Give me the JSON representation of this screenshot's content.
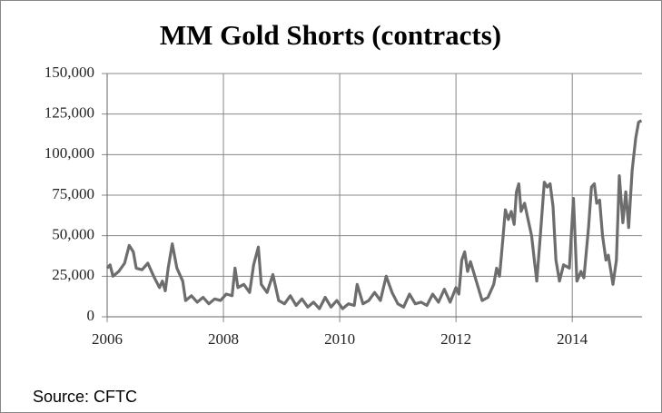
{
  "chart_data": {
    "type": "line",
    "title": "MM Gold Shorts (contracts)",
    "source": "Source: CFTC",
    "xlim": [
      2006,
      2015.2
    ],
    "xticks": [
      2006,
      2008,
      2010,
      2012,
      2014
    ],
    "ylim": [
      0,
      150000
    ],
    "yticks": [
      0,
      {
        "value": 25000,
        "label": "25,000"
      },
      {
        "value": 50000,
        "label": "50,000"
      },
      {
        "value": 75000,
        "label": "75,000"
      },
      {
        "value": 100000,
        "label": "100,000"
      },
      {
        "value": 125000,
        "label": "125,000"
      },
      {
        "value": 150000,
        "label": "150,000"
      }
    ],
    "grid": true,
    "series": [
      {
        "name": "MM Gold Shorts",
        "color": "#6d6d6d",
        "x": [
          2006.0,
          2006.05,
          2006.1,
          2006.2,
          2006.3,
          2006.38,
          2006.45,
          2006.5,
          2006.6,
          2006.7,
          2006.8,
          2006.9,
          2006.95,
          2007.0,
          2007.05,
          2007.12,
          2007.2,
          2007.3,
          2007.35,
          2007.45,
          2007.55,
          2007.65,
          2007.75,
          2007.85,
          2007.95,
          2008.05,
          2008.15,
          2008.2,
          2008.25,
          2008.35,
          2008.45,
          2008.52,
          2008.6,
          2008.65,
          2008.75,
          2008.85,
          2008.95,
          2009.05,
          2009.15,
          2009.25,
          2009.35,
          2009.45,
          2009.55,
          2009.65,
          2009.75,
          2009.85,
          2009.95,
          2010.05,
          2010.15,
          2010.25,
          2010.3,
          2010.4,
          2010.5,
          2010.6,
          2010.7,
          2010.8,
          2010.9,
          2011.0,
          2011.1,
          2011.2,
          2011.3,
          2011.4,
          2011.5,
          2011.6,
          2011.7,
          2011.8,
          2011.9,
          2012.0,
          2012.05,
          2012.1,
          2012.15,
          2012.2,
          2012.25,
          2012.35,
          2012.45,
          2012.55,
          2012.65,
          2012.7,
          2012.75,
          2012.8,
          2012.85,
          2012.9,
          2012.95,
          2013.0,
          2013.04,
          2013.08,
          2013.12,
          2013.18,
          2013.24,
          2013.3,
          2013.35,
          2013.39,
          2013.45,
          2013.52,
          2013.57,
          2013.62,
          2013.67,
          2013.72,
          2013.78,
          2013.85,
          2013.95,
          2014.02,
          2014.08,
          2014.15,
          2014.2,
          2014.28,
          2014.33,
          2014.38,
          2014.42,
          2014.47,
          2014.52,
          2014.58,
          2014.62,
          2014.7,
          2014.76,
          2014.81,
          2014.87,
          2014.92,
          2014.97,
          2015.03,
          2015.09,
          2015.14,
          2015.19
        ],
        "values": [
          30000,
          32000,
          25000,
          28000,
          33000,
          44000,
          40000,
          30000,
          29000,
          33000,
          25000,
          18000,
          22000,
          16000,
          30000,
          45000,
          30000,
          22000,
          10000,
          13000,
          9000,
          12000,
          8000,
          11000,
          10000,
          14000,
          13000,
          30000,
          18000,
          20000,
          15000,
          32000,
          43000,
          20000,
          15000,
          26000,
          10000,
          8000,
          13000,
          7000,
          11000,
          6000,
          9000,
          5000,
          12000,
          6000,
          10000,
          5000,
          8000,
          7000,
          20000,
          8000,
          10000,
          15000,
          10000,
          25000,
          15000,
          8000,
          6000,
          14000,
          8000,
          9000,
          7000,
          14000,
          9000,
          17000,
          9000,
          18000,
          14000,
          35000,
          40000,
          28000,
          34000,
          22000,
          10000,
          12000,
          20000,
          30000,
          25000,
          45000,
          66000,
          60000,
          65000,
          57000,
          77000,
          82000,
          65000,
          70000,
          60000,
          50000,
          34000,
          22000,
          50000,
          83000,
          80000,
          82000,
          68000,
          35000,
          22000,
          32000,
          30000,
          73000,
          22000,
          28000,
          24000,
          55000,
          80000,
          82000,
          70000,
          72000,
          50000,
          35000,
          38000,
          20000,
          35000,
          87000,
          58000,
          77000,
          55000,
          90000,
          110000,
          120000,
          121000
        ]
      }
    ]
  }
}
